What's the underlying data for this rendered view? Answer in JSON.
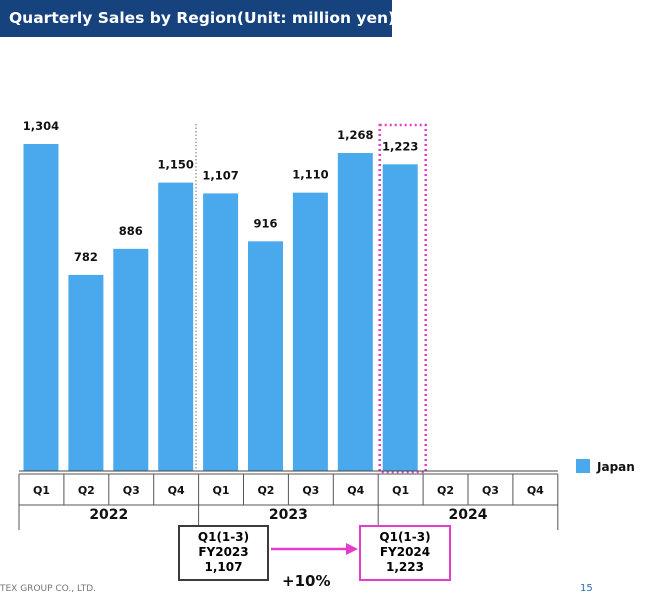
{
  "title": "Quarterly Sales by Region(Unit: million yen)",
  "colors": {
    "title_bg": "#16437e",
    "bar": "#4aa9ec",
    "highlight": "#e23dcc",
    "divider": "#888888"
  },
  "chart_data": {
    "type": "bar",
    "title": "Quarterly Sales by Region(Unit: million yen)",
    "categories": [
      "Q1",
      "Q2",
      "Q3",
      "Q4",
      "Q1",
      "Q2",
      "Q3",
      "Q4",
      "Q1",
      "Q2",
      "Q3",
      "Q4"
    ],
    "value_labels": [
      "1,304",
      "782",
      "886",
      "1,150",
      "1,107",
      "916",
      "1,110",
      "1,268",
      "1,223",
      "",
      "",
      ""
    ],
    "years": [
      "2022",
      "2023",
      "2024"
    ],
    "series": [
      {
        "name": "Japan",
        "values": [
          1304,
          782,
          886,
          1150,
          1107,
          916,
          1110,
          1268,
          1223,
          null,
          null,
          null
        ]
      }
    ],
    "ylim": [
      0,
      1304
    ],
    "legend": "right",
    "highlighted_index": 8
  },
  "comparison": {
    "previous": {
      "line1": "Q1(1-3)",
      "line2": "FY2023",
      "line3": "1,107"
    },
    "current": {
      "line1": "Q1(1-3)",
      "line2": "FY2024",
      "line3": "1,223"
    },
    "growth": "+10%"
  },
  "footer": {
    "company": "TEX GROUP CO., LTD.",
    "page": "15"
  }
}
